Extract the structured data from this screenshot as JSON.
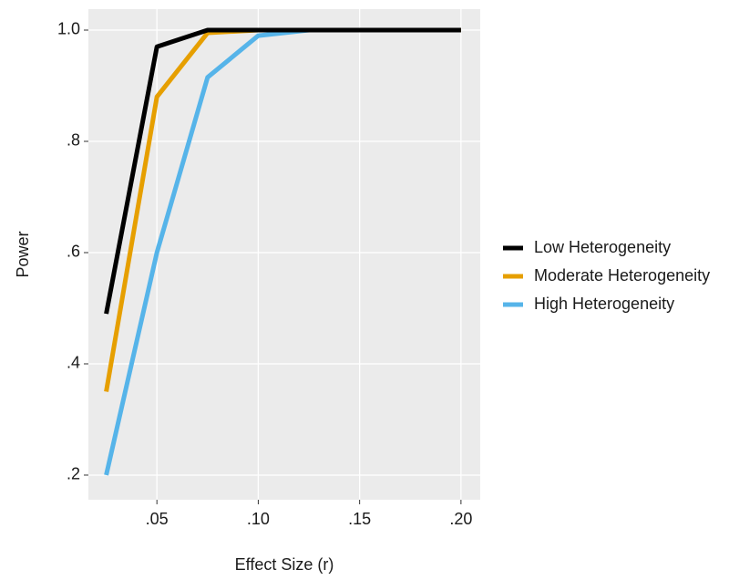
{
  "chart_data": {
    "type": "line",
    "x_label": "Effect Size (r)",
    "y_label": "Power",
    "x": [
      0.025,
      0.05,
      0.075,
      0.1,
      0.125,
      0.15,
      0.175,
      0.2
    ],
    "series": [
      {
        "name": "Low Heterogeneity",
        "color": "#000000",
        "values": [
          0.49,
          0.97,
          1.0,
          1.0,
          1.0,
          1.0,
          1.0,
          1.0
        ]
      },
      {
        "name": "Moderate Heterogeneity",
        "color": "#E69F00",
        "values": [
          0.35,
          0.88,
          0.995,
          1.0,
          1.0,
          1.0,
          1.0,
          1.0
        ]
      },
      {
        "name": "High Heterogeneity",
        "color": "#56B4E9",
        "values": [
          0.2,
          0.6,
          0.915,
          0.99,
          1.0,
          1.0,
          1.0,
          1.0
        ]
      }
    ],
    "xlim": [
      0.0162,
      0.2095
    ],
    "ylim": [
      0.1557,
      1.0377
    ],
    "xticks": [
      {
        "value": 0.05,
        "label": ".05"
      },
      {
        "value": 0.1,
        "label": ".10"
      },
      {
        "value": 0.15,
        "label": ".15"
      },
      {
        "value": 0.2,
        "label": ".20"
      }
    ],
    "yticks": [
      {
        "value": 0.2,
        "label": ".2"
      },
      {
        "value": 0.4,
        "label": ".4"
      },
      {
        "value": 0.6,
        "label": ".6"
      },
      {
        "value": 0.8,
        "label": ".8"
      },
      {
        "value": 1.0,
        "label": "1.0"
      }
    ],
    "grid": true,
    "legend": "right"
  }
}
